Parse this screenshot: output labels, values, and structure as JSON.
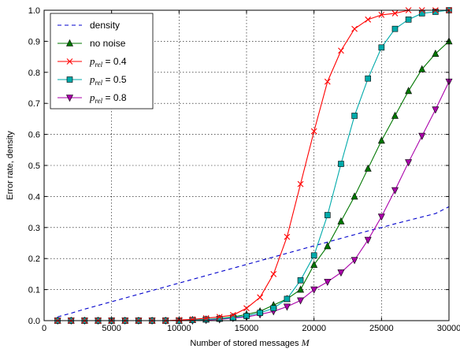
{
  "chart_data": {
    "type": "line",
    "title": "",
    "xlabel": "Number of stored messages M",
    "ylabel": "Error rate, density",
    "xlim": [
      0,
      30000
    ],
    "ylim": [
      0,
      1.0
    ],
    "x_ticks": [
      0,
      5000,
      10000,
      15000,
      20000,
      25000,
      30000
    ],
    "x_tick_labels": [
      "0",
      "5000",
      "10000",
      "15000",
      "20000",
      "25000",
      "30000"
    ],
    "y_ticks": [
      0,
      0.1,
      0.2,
      0.3,
      0.4,
      0.5,
      0.6,
      0.7,
      0.8,
      0.9,
      1.0
    ],
    "y_tick_labels": [
      "0.0",
      "0.1",
      "0.2",
      "0.3",
      "0.4",
      "0.5",
      "0.6",
      "0.7",
      "0.8",
      "0.9",
      "1.0"
    ],
    "grid": true,
    "legend_position": "top-left",
    "x": [
      1000,
      2000,
      3000,
      4000,
      5000,
      6000,
      7000,
      8000,
      9000,
      10000,
      11000,
      12000,
      13000,
      14000,
      15000,
      16000,
      17000,
      18000,
      19000,
      20000,
      21000,
      22000,
      23000,
      24000,
      25000,
      26000,
      27000,
      28000,
      29000,
      30000
    ],
    "series": [
      {
        "name": "density",
        "color": "#0000cc",
        "style": "dashed",
        "marker": "none",
        "values": [
          0.012,
          0.024,
          0.037,
          0.049,
          0.061,
          0.073,
          0.085,
          0.097,
          0.109,
          0.121,
          0.133,
          0.145,
          0.157,
          0.169,
          0.181,
          0.193,
          0.205,
          0.217,
          0.229,
          0.241,
          0.253,
          0.265,
          0.277,
          0.289,
          0.3,
          0.312,
          0.323,
          0.334,
          0.345,
          0.367
        ]
      },
      {
        "name": "no noise",
        "color": "#007700",
        "style": "solid",
        "marker": "triangle-up",
        "values": [
          0.0,
          0.0,
          0.0,
          0.0,
          0.0,
          0.0,
          0.0,
          0.0,
          0.0,
          0.0,
          0.002,
          0.004,
          0.007,
          0.012,
          0.02,
          0.03,
          0.05,
          0.07,
          0.1,
          0.18,
          0.24,
          0.32,
          0.4,
          0.49,
          0.58,
          0.66,
          0.74,
          0.81,
          0.86,
          0.9
        ]
      },
      {
        "name": "p_rel = 0.4",
        "color": "#ff0000",
        "style": "solid",
        "marker": "x",
        "values": [
          0.0,
          0.0,
          0.0,
          0.0,
          0.0,
          0.0,
          0.0,
          0.0,
          0.0,
          0.002,
          0.004,
          0.008,
          0.012,
          0.018,
          0.04,
          0.075,
          0.15,
          0.27,
          0.44,
          0.61,
          0.77,
          0.87,
          0.94,
          0.97,
          0.985,
          0.99,
          1.0,
          1.0,
          1.0,
          1.0
        ]
      },
      {
        "name": "p_rel = 0.5",
        "color": "#00aaaa",
        "style": "solid",
        "marker": "square",
        "values": [
          0.0,
          0.0,
          0.0,
          0.0,
          0.0,
          0.0,
          0.0,
          0.0,
          0.0,
          0.0,
          0.002,
          0.004,
          0.006,
          0.01,
          0.015,
          0.025,
          0.04,
          0.07,
          0.13,
          0.21,
          0.34,
          0.505,
          0.66,
          0.78,
          0.88,
          0.94,
          0.97,
          0.99,
          0.995,
          1.0
        ]
      },
      {
        "name": "p_rel = 0.8",
        "color": "#aa00aa",
        "style": "solid",
        "marker": "triangle-down",
        "values": [
          0.0,
          0.0,
          0.0,
          0.0,
          0.0,
          0.0,
          0.0,
          0.0,
          0.0,
          0.0,
          0.0,
          0.002,
          0.004,
          0.008,
          0.012,
          0.02,
          0.03,
          0.045,
          0.065,
          0.1,
          0.125,
          0.155,
          0.195,
          0.26,
          0.335,
          0.42,
          0.51,
          0.595,
          0.68,
          0.77
        ]
      }
    ],
    "legend": [
      {
        "name": "density",
        "label_main": "density",
        "label_sub": ""
      },
      {
        "name": "no noise",
        "label_main": "no noise",
        "label_sub": ""
      },
      {
        "name": "p_rel = 0.4",
        "label_main": "p",
        "label_sub": "rel",
        "label_value": " = 0.4"
      },
      {
        "name": "p_rel = 0.5",
        "label_main": "p",
        "label_sub": "rel",
        "label_value": " = 0.5"
      },
      {
        "name": "p_rel = 0.8",
        "label_main": "p",
        "label_sub": "rel",
        "label_value": " = 0.8"
      }
    ]
  }
}
